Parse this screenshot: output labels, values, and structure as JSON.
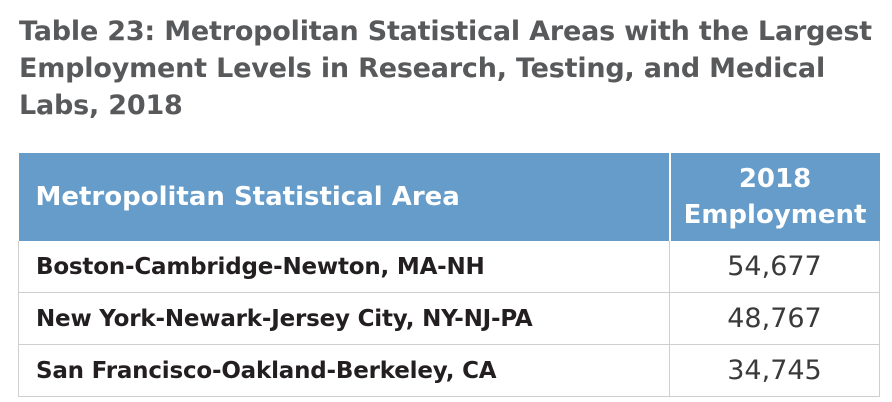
{
  "title": "Table 23: Metropolitan Statistical Areas with the Largest Employment Levels in Research, Testing, and Medical Labs, 2018",
  "table": {
    "headers": {
      "area": "Metropolitan Statistical Area",
      "employment": "2018 Employment"
    },
    "rows": [
      {
        "area": "Boston-Cambridge-Newton, MA-NH",
        "employment": "54,677"
      },
      {
        "area": "New York-Newark-Jersey City, NY-NJ-PA",
        "employment": "48,767"
      },
      {
        "area": "San Francisco-Oakland-Berkeley, CA",
        "employment": "34,745"
      }
    ]
  },
  "colors": {
    "header_bg": "#659cc9",
    "title_text": "#58595b"
  }
}
